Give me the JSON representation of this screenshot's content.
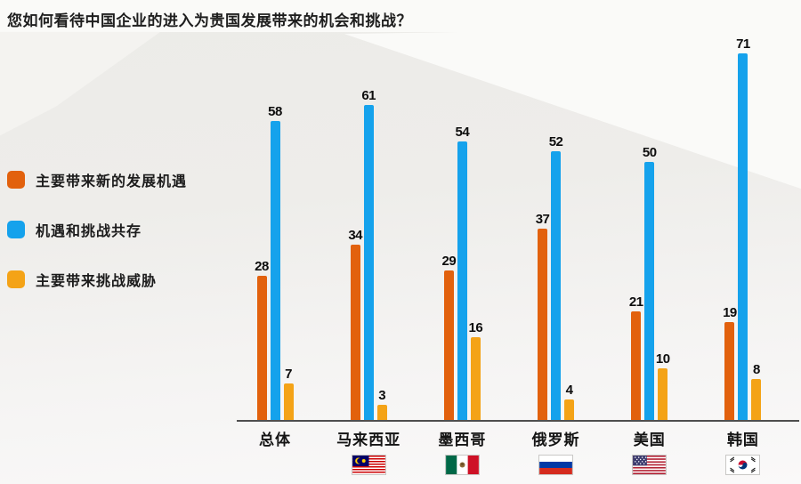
{
  "title": "您如何看待中国企业的进入为贵国发展带来的机会和挑战？",
  "colors": {
    "opportunity_orange": "#E2610D",
    "coexist_blue": "#15A2EC",
    "threat_amber": "#F4A317",
    "axis": "#4E4E4E",
    "text": "#1C1C1C"
  },
  "legend": [
    {
      "label": "主要带来新的发展机遇",
      "series": "opportunity"
    },
    {
      "label": "机遇和挑战共存",
      "series": "coexist"
    },
    {
      "label": "主要带来挑战威胁",
      "series": "threat"
    }
  ],
  "chart_data": {
    "type": "bar",
    "title": "您如何看待中国企业的进入为贵国发展带来的机会和挑战？",
    "categories": [
      "总体",
      "马来西亚",
      "墨西哥",
      "俄罗斯",
      "美国",
      "韩国"
    ],
    "category_flags": [
      null,
      "malaysia-flag-icon",
      "mexico-flag-icon",
      "russia-flag-icon",
      "usa-flag-icon",
      "south-korea-flag-icon"
    ],
    "series": [
      {
        "name": "主要带来新的发展机遇",
        "color": "#E2610D",
        "values": [
          28,
          34,
          29,
          37,
          21,
          19
        ]
      },
      {
        "name": "机遇和挑战共存",
        "color": "#15A2EC",
        "values": [
          58,
          61,
          54,
          52,
          50,
          71
        ]
      },
      {
        "name": "主要带来挑战威胁",
        "color": "#F4A317",
        "values": [
          7,
          3,
          16,
          4,
          10,
          8
        ]
      }
    ],
    "value_labels": true,
    "xlabel": "",
    "ylabel": "",
    "ylim": [
      0,
      75
    ],
    "grid": false,
    "legend_position": "left"
  }
}
